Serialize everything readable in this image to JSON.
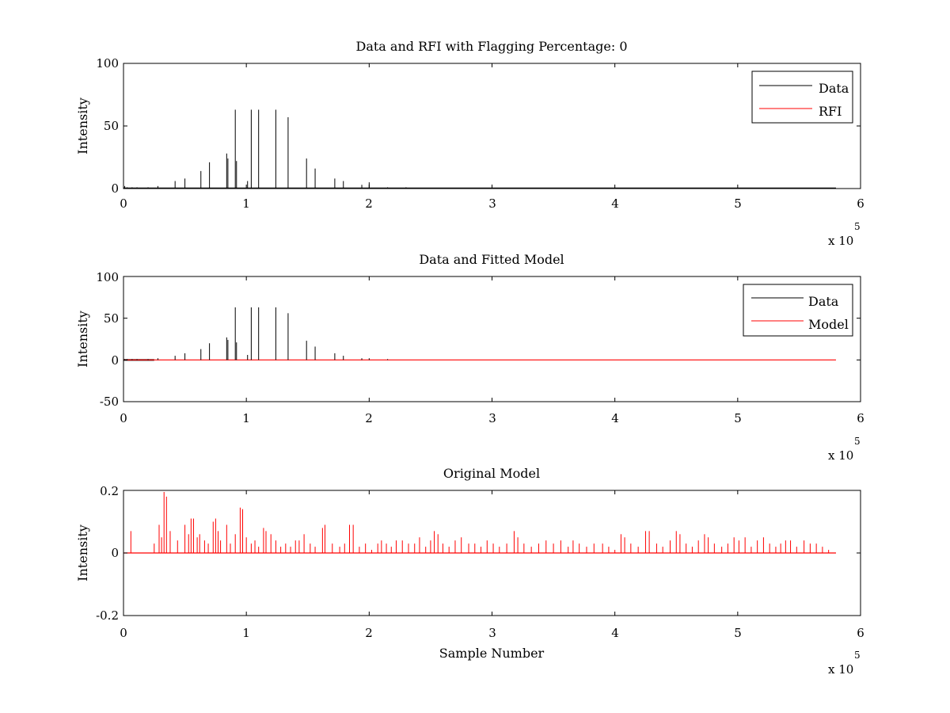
{
  "figure": {
    "xlabel": "Sample Number",
    "exponent_base": "x 10",
    "exponent_power": "5"
  },
  "chart_data": [
    {
      "type": "line",
      "title": "Data and RFI with Flagging Percentage: 0",
      "ylabel": "Intensity",
      "xlabel": "",
      "xlim": [
        0,
        600000
      ],
      "ylim": [
        0,
        100
      ],
      "xticks": [
        "0",
        "1",
        "2",
        "3",
        "4",
        "5",
        "6"
      ],
      "yticks": [
        "0",
        "50",
        "100"
      ],
      "ytick_values": [
        0,
        50,
        100
      ],
      "x_multiplier": "x 10^5",
      "legend_position": "top-right",
      "baseline": 0,
      "x_end": 580000,
      "series": [
        {
          "name": "Data",
          "color": "#000000",
          "spikes": [
            [
              1000,
              2
            ],
            [
              3000,
              1
            ],
            [
              7000,
              1
            ],
            [
              11000,
              1
            ],
            [
              20000,
              1
            ],
            [
              28000,
              2
            ],
            [
              42000,
              6
            ],
            [
              50000,
              8
            ],
            [
              63000,
              14
            ],
            [
              70000,
              21
            ],
            [
              84000,
              28
            ],
            [
              85000,
              24
            ],
            [
              91000,
              63
            ],
            [
              92000,
              22
            ],
            [
              101000,
              6
            ],
            [
              104000,
              63
            ],
            [
              110000,
              63
            ],
            [
              124000,
              63
            ],
            [
              134000,
              57
            ],
            [
              149000,
              24
            ],
            [
              156000,
              16
            ],
            [
              172000,
              8
            ],
            [
              179000,
              6
            ],
            [
              194000,
              3
            ],
            [
              200000,
              5
            ],
            [
              215000,
              1
            ],
            [
              230000,
              1
            ]
          ]
        },
        {
          "name": "RFI",
          "color": "#ff0000",
          "spikes": []
        }
      ]
    },
    {
      "type": "line",
      "title": "Data and Fitted Model",
      "ylabel": "Intensity",
      "xlabel": "",
      "xlim": [
        0,
        600000
      ],
      "ylim": [
        -50,
        100
      ],
      "xticks": [
        "0",
        "1",
        "2",
        "3",
        "4",
        "5",
        "6"
      ],
      "yticks": [
        "-50",
        "0",
        "50",
        "100"
      ],
      "ytick_values": [
        -50,
        0,
        50,
        100
      ],
      "x_multiplier": "x 10^5",
      "legend_position": "top-right",
      "baseline": 0,
      "x_end": 580000,
      "series": [
        {
          "name": "Data",
          "color": "#000000",
          "spikes": [
            [
              1000,
              1
            ],
            [
              3000,
              1
            ],
            [
              7000,
              1
            ],
            [
              11000,
              1
            ],
            [
              20000,
              1
            ],
            [
              28000,
              2
            ],
            [
              42000,
              5
            ],
            [
              50000,
              8
            ],
            [
              63000,
              13
            ],
            [
              70000,
              20
            ],
            [
              84000,
              27
            ],
            [
              85000,
              24
            ],
            [
              91000,
              63
            ],
            [
              92000,
              21
            ],
            [
              101000,
              6
            ],
            [
              104000,
              63
            ],
            [
              110000,
              63
            ],
            [
              124000,
              63
            ],
            [
              134000,
              56
            ],
            [
              149000,
              23
            ],
            [
              156000,
              16
            ],
            [
              172000,
              8
            ],
            [
              179000,
              5
            ],
            [
              194000,
              2
            ],
            [
              200000,
              2
            ],
            [
              215000,
              1
            ]
          ]
        },
        {
          "name": "Model",
          "color": "#ff0000",
          "spikes": []
        }
      ]
    },
    {
      "type": "line",
      "title": "Original Model",
      "ylabel": "Intensity",
      "xlabel": "Sample Number",
      "xlim": [
        0,
        600000
      ],
      "ylim": [
        -0.2,
        0.2
      ],
      "xticks": [
        "0",
        "1",
        "2",
        "3",
        "4",
        "5",
        "6"
      ],
      "yticks": [
        "-0.2",
        "0",
        "0.2"
      ],
      "ytick_values": [
        -0.2,
        0,
        0.2
      ],
      "x_multiplier": "x 10^5",
      "legend_position": "none",
      "baseline": 0,
      "x_end": 580000,
      "series": [
        {
          "name": "",
          "color": "#ff0000",
          "spikes": [
            [
              6000,
              0.07
            ],
            [
              25000,
              0.03
            ],
            [
              29000,
              0.09
            ],
            [
              31000,
              0.05
            ],
            [
              33000,
              0.195
            ],
            [
              35000,
              0.18
            ],
            [
              38000,
              0.07
            ],
            [
              44000,
              0.04
            ],
            [
              50000,
              0.09
            ],
            [
              53000,
              0.06
            ],
            [
              55000,
              0.11
            ],
            [
              57000,
              0.11
            ],
            [
              60000,
              0.05
            ],
            [
              62000,
              0.06
            ],
            [
              66000,
              0.04
            ],
            [
              69000,
              0.03
            ],
            [
              73000,
              0.1
            ],
            [
              75000,
              0.11
            ],
            [
              77000,
              0.07
            ],
            [
              79000,
              0.04
            ],
            [
              84000,
              0.09
            ],
            [
              87000,
              0.03
            ],
            [
              91000,
              0.06
            ],
            [
              95000,
              0.145
            ],
            [
              97000,
              0.14
            ],
            [
              100000,
              0.05
            ],
            [
              104000,
              0.03
            ],
            [
              107000,
              0.04
            ],
            [
              110000,
              0.02
            ],
            [
              114000,
              0.08
            ],
            [
              116000,
              0.07
            ],
            [
              120000,
              0.06
            ],
            [
              124000,
              0.04
            ],
            [
              128000,
              0.02
            ],
            [
              132000,
              0.03
            ],
            [
              136000,
              0.02
            ],
            [
              140000,
              0.04
            ],
            [
              143000,
              0.04
            ],
            [
              147000,
              0.06
            ],
            [
              152000,
              0.03
            ],
            [
              156000,
              0.02
            ],
            [
              162000,
              0.08
            ],
            [
              164000,
              0.09
            ],
            [
              170000,
              0.03
            ],
            [
              176000,
              0.02
            ],
            [
              180000,
              0.03
            ],
            [
              184000,
              0.09
            ],
            [
              187000,
              0.09
            ],
            [
              192000,
              0.02
            ],
            [
              197000,
              0.03
            ],
            [
              202000,
              0.01
            ],
            [
              207000,
              0.03
            ],
            [
              210000,
              0.04
            ],
            [
              214000,
              0.03
            ],
            [
              218000,
              0.02
            ],
            [
              222000,
              0.04
            ],
            [
              227000,
              0.04
            ],
            [
              232000,
              0.03
            ],
            [
              237000,
              0.03
            ],
            [
              241000,
              0.05
            ],
            [
              246000,
              0.02
            ],
            [
              250000,
              0.04
            ],
            [
              253000,
              0.07
            ],
            [
              256000,
              0.06
            ],
            [
              260000,
              0.03
            ],
            [
              265000,
              0.02
            ],
            [
              270000,
              0.04
            ],
            [
              275000,
              0.05
            ],
            [
              281000,
              0.03
            ],
            [
              286000,
              0.03
            ],
            [
              291000,
              0.02
            ],
            [
              296000,
              0.04
            ],
            [
              301000,
              0.03
            ],
            [
              306000,
              0.02
            ],
            [
              312000,
              0.03
            ],
            [
              318000,
              0.07
            ],
            [
              321000,
              0.05
            ],
            [
              326000,
              0.03
            ],
            [
              332000,
              0.02
            ],
            [
              338000,
              0.03
            ],
            [
              344000,
              0.04
            ],
            [
              350000,
              0.03
            ],
            [
              356000,
              0.04
            ],
            [
              362000,
              0.02
            ],
            [
              366000,
              0.04
            ],
            [
              371000,
              0.03
            ],
            [
              377000,
              0.02
            ],
            [
              383000,
              0.03
            ],
            [
              390000,
              0.03
            ],
            [
              395000,
              0.02
            ],
            [
              400000,
              0.01
            ],
            [
              405000,
              0.06
            ],
            [
              408000,
              0.05
            ],
            [
              413000,
              0.03
            ],
            [
              419000,
              0.02
            ],
            [
              425000,
              0.07
            ],
            [
              428000,
              0.07
            ],
            [
              434000,
              0.03
            ],
            [
              439000,
              0.02
            ],
            [
              445000,
              0.04
            ],
            [
              450000,
              0.07
            ],
            [
              453000,
              0.06
            ],
            [
              458000,
              0.03
            ],
            [
              463000,
              0.02
            ],
            [
              468000,
              0.04
            ],
            [
              473000,
              0.06
            ],
            [
              476000,
              0.05
            ],
            [
              481000,
              0.03
            ],
            [
              487000,
              0.02
            ],
            [
              492000,
              0.03
            ],
            [
              497000,
              0.05
            ],
            [
              501000,
              0.04
            ],
            [
              506000,
              0.05
            ],
            [
              511000,
              0.02
            ],
            [
              516000,
              0.04
            ],
            [
              521000,
              0.05
            ],
            [
              526000,
              0.03
            ],
            [
              531000,
              0.02
            ],
            [
              535000,
              0.03
            ],
            [
              539000,
              0.04
            ],
            [
              543000,
              0.04
            ],
            [
              548000,
              0.02
            ],
            [
              554000,
              0.04
            ],
            [
              559000,
              0.03
            ],
            [
              564000,
              0.03
            ],
            [
              569000,
              0.02
            ],
            [
              574000,
              0.01
            ]
          ]
        }
      ]
    }
  ]
}
